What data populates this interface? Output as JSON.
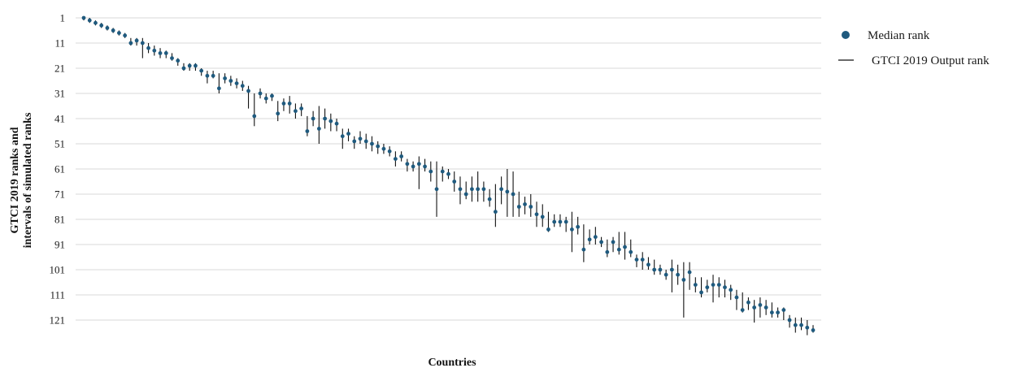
{
  "chart_data": {
    "type": "scatter",
    "xlabel": "Countries",
    "ylabel_line1": "GTCI 2019 ranks and",
    "ylabel_line2": "intervals of simulated ranks",
    "y_ticks": [
      1,
      11,
      21,
      31,
      41,
      51,
      61,
      71,
      81,
      91,
      101,
      111,
      121
    ],
    "ylim": [
      1,
      125
    ],
    "y_inverted": true,
    "grid": true,
    "legend_position": "top-right",
    "legend": [
      {
        "label": "Median rank",
        "symbol": "dot"
      },
      {
        "label": "GTCI 2019 Output rank",
        "symbol": "line"
      }
    ],
    "colors": {
      "median": "#1f5a7e",
      "interval": "#111111",
      "grid": "#d9d9d9"
    },
    "x": [
      1,
      2,
      3,
      4,
      5,
      6,
      7,
      8,
      9,
      10,
      11,
      12,
      13,
      14,
      15,
      16,
      17,
      18,
      19,
      20,
      21,
      22,
      23,
      24,
      25,
      26,
      27,
      28,
      29,
      30,
      31,
      32,
      33,
      34,
      35,
      36,
      37,
      38,
      39,
      40,
      41,
      42,
      43,
      44,
      45,
      46,
      47,
      48,
      49,
      50,
      51,
      52,
      53,
      54,
      55,
      56,
      57,
      58,
      59,
      60,
      61,
      62,
      63,
      64,
      65,
      66,
      67,
      68,
      69,
      70,
      71,
      72,
      73,
      74,
      75,
      76,
      77,
      78,
      79,
      80,
      81,
      82,
      83,
      84,
      85,
      86,
      87,
      88,
      89,
      90,
      91,
      92,
      93,
      94,
      95,
      96,
      97,
      98,
      99,
      100,
      101,
      102,
      103,
      104,
      105,
      106,
      107,
      108,
      109,
      110,
      111,
      112,
      113,
      114,
      115,
      116,
      117,
      118,
      119,
      120,
      121,
      122,
      123,
      124,
      125
    ],
    "median": [
      1,
      2,
      3,
      4,
      5,
      6,
      7,
      8,
      11,
      10,
      11,
      13,
      14,
      15,
      15,
      17,
      18,
      21,
      20,
      20,
      22,
      24,
      24,
      29,
      25,
      26,
      27,
      28,
      30,
      40,
      31,
      33,
      32,
      39,
      35,
      35,
      38,
      37,
      46,
      41,
      45,
      41,
      42,
      43,
      48,
      47,
      50,
      49,
      50,
      51,
      52,
      53,
      54,
      57,
      56,
      59,
      60,
      59,
      60,
      62,
      69,
      62,
      63,
      66,
      69,
      71,
      69,
      69,
      69,
      73,
      78,
      69,
      70,
      71,
      76,
      75,
      76,
      79,
      80,
      85,
      82,
      82,
      82,
      85,
      84,
      93,
      89,
      88,
      90,
      94,
      90,
      93,
      92,
      94,
      97,
      97,
      99,
      101,
      101,
      103,
      101,
      103,
      105,
      102,
      107,
      110,
      108,
      107,
      107,
      108,
      109,
      112,
      117,
      114,
      116,
      115,
      116,
      118,
      118,
      117,
      121,
      123,
      123,
      124,
      125
    ],
    "lower": [
      1,
      1,
      2,
      3,
      4,
      5,
      6,
      7,
      9,
      9,
      9,
      11,
      12,
      13,
      14,
      15,
      17,
      19,
      19,
      19,
      21,
      22,
      22,
      23,
      23,
      24,
      25,
      26,
      28,
      31,
      29,
      31,
      31,
      34,
      33,
      32,
      35,
      35,
      40,
      38,
      36,
      37,
      39,
      41,
      45,
      45,
      48,
      46,
      47,
      48,
      50,
      51,
      52,
      54,
      54,
      57,
      58,
      56,
      57,
      58,
      58,
      60,
      61,
      62,
      64,
      66,
      64,
      62,
      66,
      69,
      67,
      64,
      61,
      62,
      70,
      72,
      71,
      74,
      75,
      78,
      79,
      79,
      80,
      78,
      80,
      83,
      85,
      84,
      88,
      89,
      88,
      86,
      86,
      89,
      95,
      94,
      96,
      97,
      99,
      101,
      97,
      99,
      98,
      98,
      104,
      104,
      105,
      103,
      104,
      105,
      107,
      109,
      110,
      112,
      113,
      112,
      113,
      114,
      116,
      116,
      119,
      120,
      120,
      121,
      123
    ],
    "upper": [
      2,
      3,
      4,
      5,
      6,
      7,
      8,
      9,
      12,
      12,
      17,
      15,
      16,
      17,
      17,
      18,
      20,
      22,
      22,
      22,
      24,
      27,
      25,
      31,
      27,
      28,
      29,
      30,
      37,
      44,
      33,
      35,
      34,
      42,
      38,
      39,
      41,
      40,
      48,
      44,
      51,
      45,
      46,
      46,
      53,
      50,
      53,
      51,
      53,
      54,
      55,
      55,
      56,
      60,
      58,
      62,
      62,
      69,
      62,
      66,
      80,
      66,
      65,
      70,
      75,
      73,
      74,
      74,
      74,
      76,
      84,
      75,
      80,
      80,
      80,
      79,
      80,
      84,
      84,
      86,
      84,
      84,
      86,
      94,
      87,
      98,
      91,
      91,
      92,
      96,
      94,
      95,
      97,
      96,
      100,
      101,
      101,
      103,
      103,
      105,
      110,
      107,
      120,
      109,
      110,
      112,
      110,
      114,
      112,
      112,
      113,
      117,
      118,
      117,
      122,
      120,
      119,
      120,
      120,
      121,
      124,
      126,
      125,
      127,
      126
    ]
  }
}
